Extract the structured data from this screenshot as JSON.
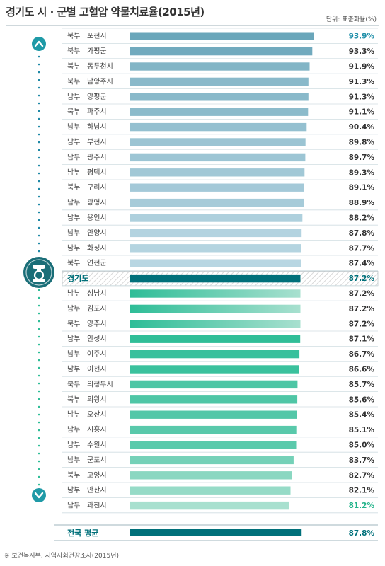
{
  "title": "경기도 시 · 군별 고혈압 약물치료율(2015년)",
  "unit": "단위: 표준화율(%)",
  "footnote": "※ 보건복지부, 지역사회건강조사(2015년)",
  "colors": {
    "above_high": "#6aa6ba",
    "above_low": "#b8d6e2",
    "below_high": "#2ebd97",
    "below_low": "#a8e0cf",
    "highlight": "#00707a",
    "max_text": "#1e8ea8",
    "min_text": "#22b38a",
    "icon": "#1f9aa7",
    "gg_icon": "#1a6e78",
    "row_line": "#d0dde2"
  },
  "icons": {
    "up": "chevron-up-icon",
    "down": "chevron-down-icon",
    "emblem": "gyeonggi-emblem-icon"
  },
  "chart_data": {
    "type": "bar",
    "orientation": "horizontal",
    "title": "경기도 시 · 군별 고혈압 약물치료율(2015년)",
    "unit": "단위: 표준화율(%)",
    "categories": [
      {
        "region": "북부",
        "name": "포천시"
      },
      {
        "region": "북부",
        "name": "가평군"
      },
      {
        "region": "북부",
        "name": "동두천시"
      },
      {
        "region": "북부",
        "name": "남양주시"
      },
      {
        "region": "남부",
        "name": "양평군"
      },
      {
        "region": "북부",
        "name": "파주시"
      },
      {
        "region": "남부",
        "name": "하남시"
      },
      {
        "region": "남부",
        "name": "부천시"
      },
      {
        "region": "남부",
        "name": "광주시"
      },
      {
        "region": "남부",
        "name": "평택시"
      },
      {
        "region": "북부",
        "name": "구리시"
      },
      {
        "region": "남부",
        "name": "광명시"
      },
      {
        "region": "남부",
        "name": "용인시"
      },
      {
        "region": "남부",
        "name": "안양시"
      },
      {
        "region": "남부",
        "name": "화성시"
      },
      {
        "region": "북부",
        "name": "연천군"
      },
      {
        "region": "",
        "name": "경기도"
      },
      {
        "region": "남부",
        "name": "성남시"
      },
      {
        "region": "남부",
        "name": "김포시"
      },
      {
        "region": "북부",
        "name": "양주시"
      },
      {
        "region": "남부",
        "name": "안성시"
      },
      {
        "region": "남부",
        "name": "여주시"
      },
      {
        "region": "남부",
        "name": "이천시"
      },
      {
        "region": "북부",
        "name": "의정부시"
      },
      {
        "region": "북부",
        "name": "의왕시"
      },
      {
        "region": "남부",
        "name": "오산시"
      },
      {
        "region": "남부",
        "name": "시흥시"
      },
      {
        "region": "남부",
        "name": "수원시"
      },
      {
        "region": "남부",
        "name": "군포시"
      },
      {
        "region": "북부",
        "name": "고양시"
      },
      {
        "region": "남부",
        "name": "안산시"
      },
      {
        "region": "남부",
        "name": "과천시"
      }
    ],
    "values": [
      93.9,
      93.3,
      91.9,
      91.3,
      91.3,
      91.1,
      90.4,
      89.8,
      89.7,
      89.3,
      89.1,
      88.9,
      88.2,
      87.8,
      87.7,
      87.4,
      87.2,
      87.2,
      87.2,
      87.2,
      87.1,
      86.7,
      86.6,
      85.7,
      85.6,
      85.4,
      85.1,
      85.0,
      83.7,
      82.7,
      82.1,
      81.2
    ],
    "labels": [
      "93.9%",
      "93.3%",
      "91.9%",
      "91.3%",
      "91.3%",
      "91.1%",
      "90.4%",
      "89.8%",
      "89.7%",
      "89.3%",
      "89.1%",
      "88.9%",
      "88.2%",
      "87.8%",
      "87.7%",
      "87.4%",
      "87.2%",
      "87.2%",
      "87.2%",
      "87.2%",
      "87.1%",
      "86.7%",
      "86.6%",
      "85.7%",
      "85.6%",
      "85.4%",
      "85.1%",
      "85.0%",
      "83.7%",
      "82.7%",
      "82.1%",
      "81.2%"
    ],
    "highlight_index": 16,
    "national_average": {
      "name": "전국 평균",
      "value": 87.8,
      "label": "87.8%"
    }
  }
}
